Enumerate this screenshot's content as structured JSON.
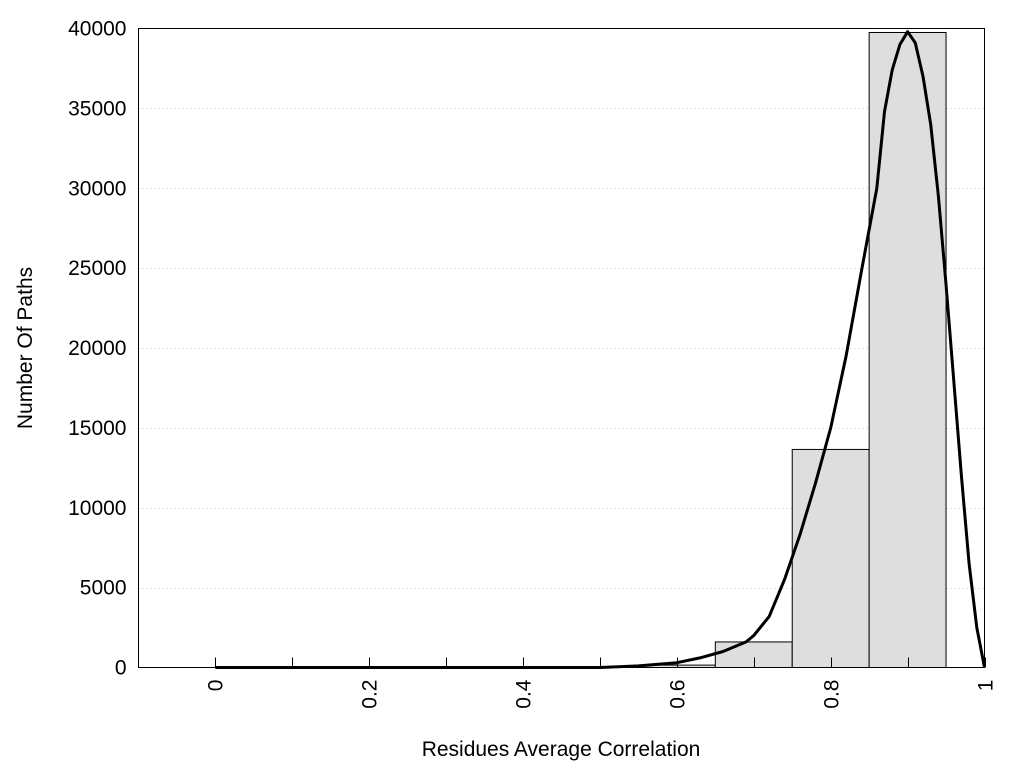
{
  "chart_data": {
    "type": "bar",
    "xlabel": "Residues Average Correlation",
    "ylabel": "Number Of Paths",
    "xlim": [
      -0.1,
      1.0
    ],
    "ylim": [
      0,
      40000
    ],
    "grid": "horizontal dotted",
    "bar_color": "#dedede",
    "x_ticks": [
      {
        "value": 0,
        "label": "0"
      },
      {
        "value": 0.2,
        "label": "0.2"
      },
      {
        "value": 0.4,
        "label": "0.4"
      },
      {
        "value": 0.6,
        "label": "0.6"
      },
      {
        "value": 0.8,
        "label": "0.8"
      },
      {
        "value": 1,
        "label": "1"
      }
    ],
    "minor_x_ticks": [
      0.1,
      0.3,
      0.5,
      0.7,
      0.9
    ],
    "y_ticks": [
      {
        "value": 0,
        "label": "0"
      },
      {
        "value": 5000,
        "label": "5000"
      },
      {
        "value": 10000,
        "label": "10000"
      },
      {
        "value": 15000,
        "label": "15000"
      },
      {
        "value": 20000,
        "label": "20000"
      },
      {
        "value": 25000,
        "label": "25000"
      },
      {
        "value": 30000,
        "label": "30000"
      },
      {
        "value": 35000,
        "label": "35000"
      },
      {
        "value": 40000,
        "label": "40000"
      }
    ],
    "bins": [
      {
        "start": 0.0,
        "end": 0.05,
        "value": 0
      },
      {
        "start": 0.05,
        "end": 0.15,
        "value": 0
      },
      {
        "start": 0.15,
        "end": 0.25,
        "value": 0
      },
      {
        "start": 0.25,
        "end": 0.35,
        "value": 0
      },
      {
        "start": 0.35,
        "end": 0.45,
        "value": 0
      },
      {
        "start": 0.45,
        "end": 0.55,
        "value": 0
      },
      {
        "start": 0.55,
        "end": 0.65,
        "value": 150
      },
      {
        "start": 0.65,
        "end": 0.75,
        "value": 1600
      },
      {
        "start": 0.75,
        "end": 0.85,
        "value": 13650
      },
      {
        "start": 0.85,
        "end": 0.95,
        "value": 39750
      }
    ],
    "fit_curve": {
      "x": [
        0.0,
        0.1,
        0.2,
        0.3,
        0.4,
        0.5,
        0.55,
        0.6,
        0.63,
        0.66,
        0.69,
        0.7,
        0.72,
        0.74,
        0.76,
        0.78,
        0.8,
        0.82,
        0.84,
        0.86,
        0.87,
        0.88,
        0.89,
        0.9,
        0.91,
        0.92,
        0.93,
        0.94,
        0.95,
        0.96,
        0.97,
        0.98,
        0.99,
        1.0
      ],
      "y": [
        0,
        0,
        0,
        0,
        0,
        0,
        100,
        300,
        600,
        1000,
        1600,
        2000,
        3200,
        5500,
        8300,
        11500,
        15000,
        19500,
        24800,
        30000,
        34800,
        37400,
        39000,
        39800,
        39100,
        37000,
        34000,
        29500,
        24000,
        18000,
        12000,
        6500,
        2500,
        0
      ]
    }
  }
}
